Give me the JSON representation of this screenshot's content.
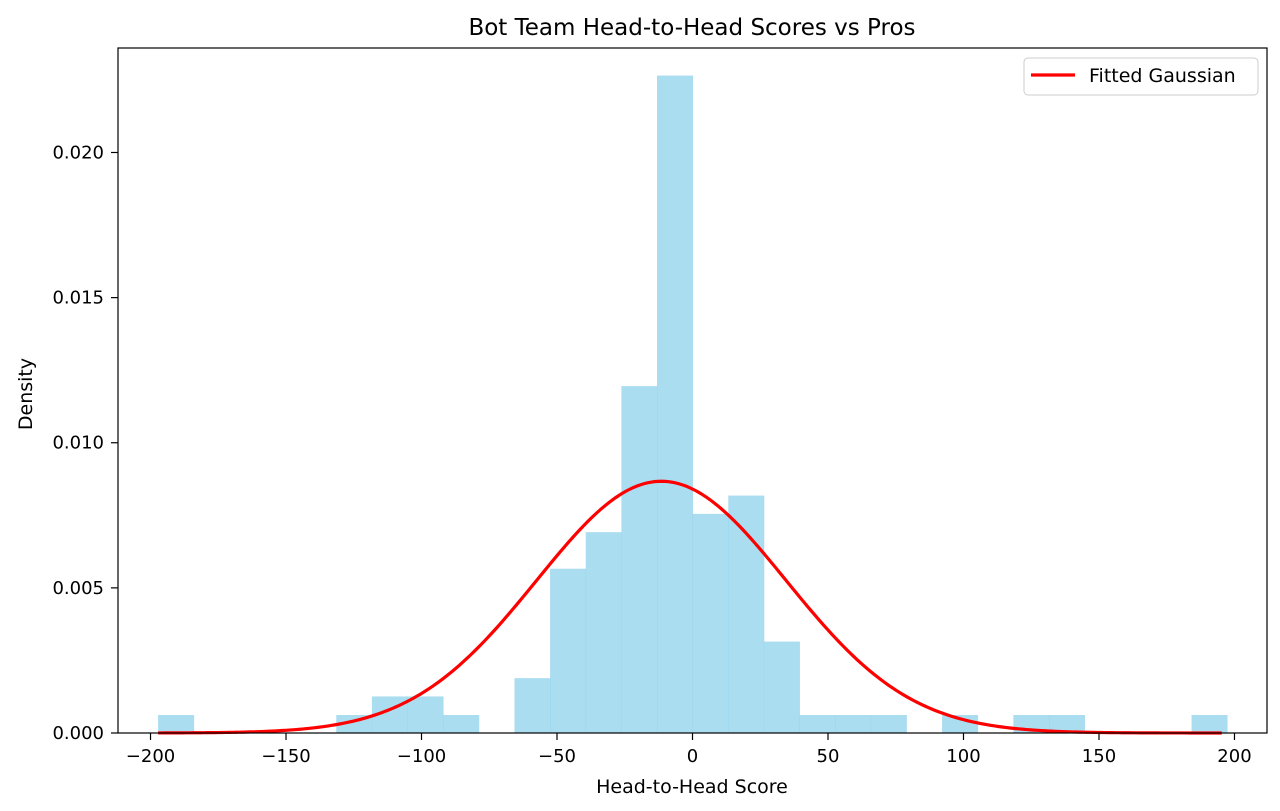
{
  "chart_data": {
    "type": "bar",
    "title": "Bot Team Head-to-Head Scores vs Pros",
    "xlabel": "Head-to-Head Score",
    "ylabel": "Density",
    "xlim": [
      -212,
      212
    ],
    "ylim": [
      0,
      0.0236
    ],
    "xticks": [
      -200,
      -150,
      -100,
      -50,
      0,
      50,
      100,
      150,
      200
    ],
    "xtick_labels": [
      "−200",
      "−150",
      "−100",
      "−50",
      "0",
      "50",
      "100",
      "150",
      "200"
    ],
    "yticks": [
      0.0,
      0.005,
      0.01,
      0.015,
      0.02
    ],
    "ytick_labels": [
      "0.000",
      "0.005",
      "0.010",
      "0.015",
      "0.020"
    ],
    "histogram": {
      "color": "#87ceeb",
      "bin_start": -197.2,
      "bin_width": 13.15,
      "densities": [
        0.00062,
        0,
        0,
        0,
        0,
        0.00062,
        0.00126,
        0.00126,
        0.00062,
        0,
        0.00189,
        0.00566,
        0.00692,
        0.01195,
        0.02265,
        0.00755,
        0.00818,
        0.00315,
        0.00062,
        0.00062,
        0.00062,
        0,
        0.00062,
        0,
        0.00062,
        0.00062,
        0,
        0,
        0,
        0.00062
      ]
    },
    "series": [
      {
        "name": "Fitted Gaussian",
        "type": "line",
        "color": "#ff0000",
        "mean": -11.5,
        "std": 46,
        "x_range": [
          -197.2,
          195.3
        ]
      }
    ],
    "legend": {
      "placement": "top-right",
      "entries": [
        "Fitted Gaussian"
      ]
    },
    "grid": false
  }
}
